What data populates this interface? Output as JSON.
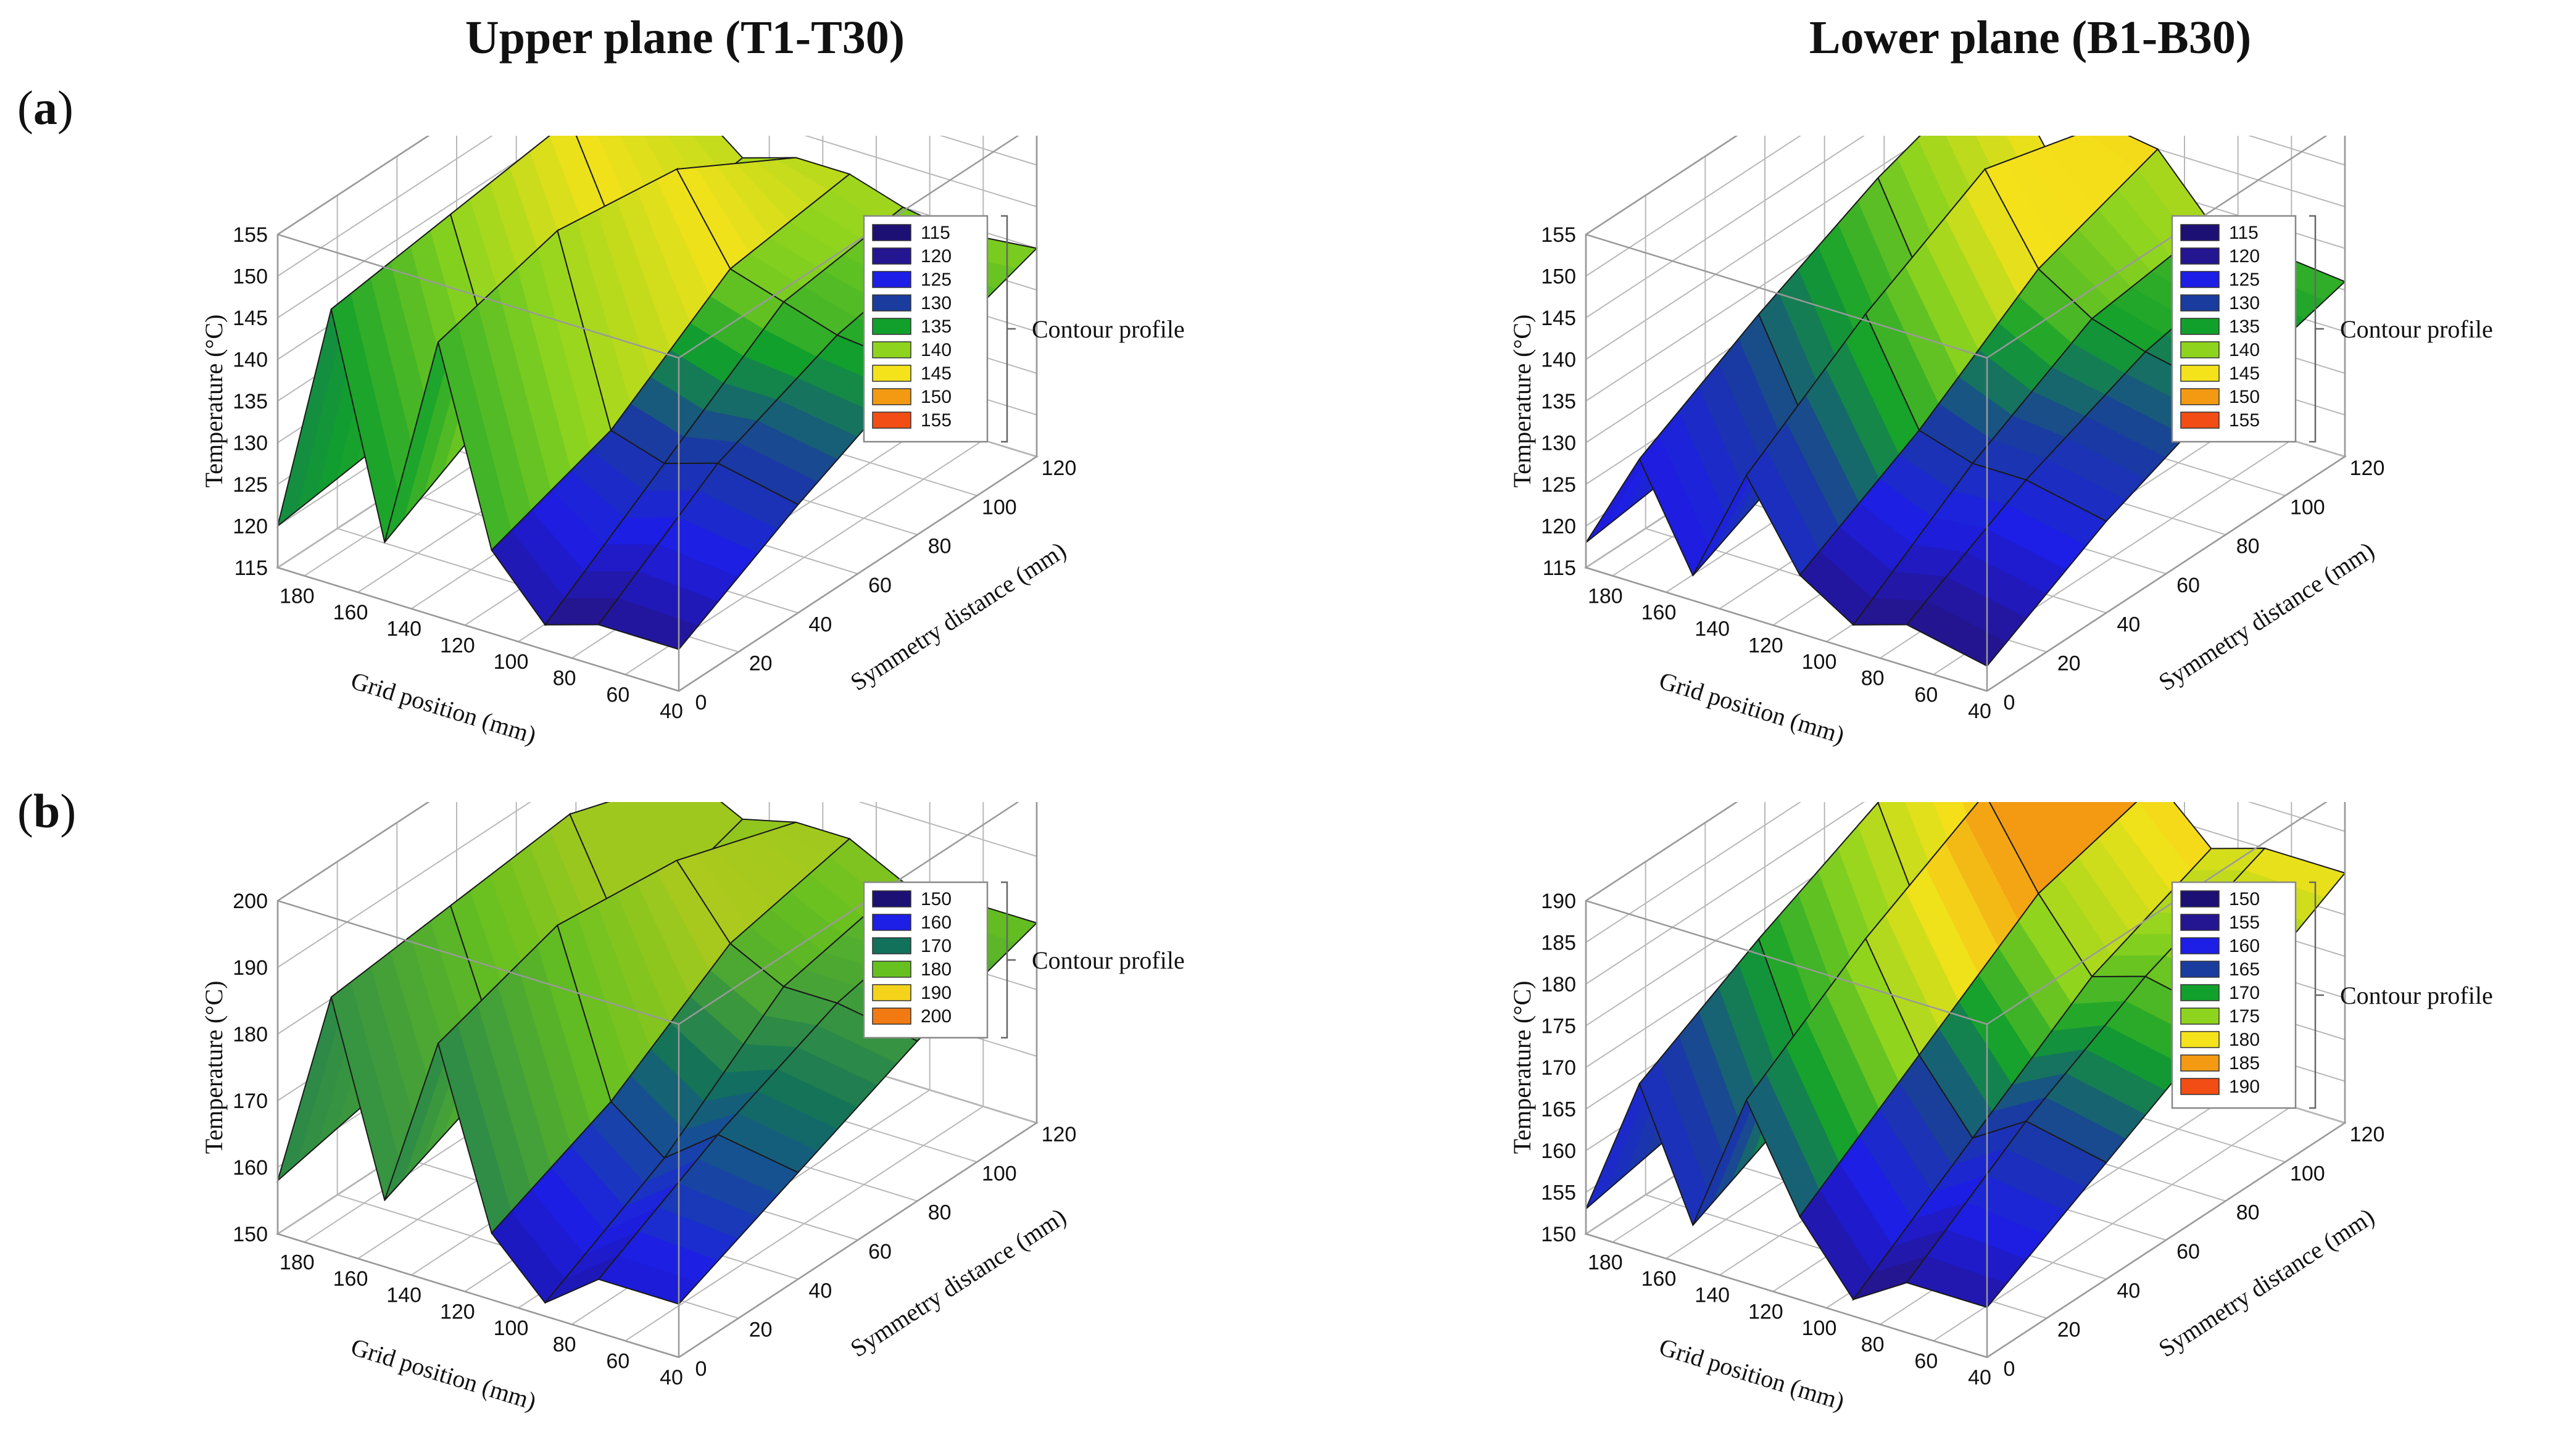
{
  "figure": {
    "column_headers": [
      "Upper plane (T1-T30)",
      "Lower plane (B1-B30)"
    ],
    "row_labels": [
      "(a)",
      "(b)"
    ],
    "row_label_parts": [
      {
        "open": "(",
        "letter": "a",
        "close": ")"
      },
      {
        "open": "(",
        "letter": "b",
        "close": ")"
      }
    ]
  },
  "chart_data": [
    {
      "id": "a-upper",
      "type": "surface3d",
      "title": "Upper plane (T1-T30)",
      "xlabel": "Grid position (mm)",
      "ylabel": "Symmetry distance (mm)",
      "zlabel": "Temperature (°C)",
      "x_ticks": [
        "180",
        "160",
        "140",
        "120",
        "100",
        "80",
        "60",
        "40"
      ],
      "y_ticks": [
        "0",
        "20",
        "40",
        "60",
        "80",
        "100",
        "120"
      ],
      "z_ticks": [
        "115",
        "120",
        "125",
        "130",
        "135",
        "140",
        "145",
        "150",
        "155"
      ],
      "zlim": [
        115,
        155
      ],
      "legend_title": "Contour profile",
      "legend": [
        "115",
        "120",
        "125",
        "130",
        "135",
        "140",
        "145",
        "150",
        "155"
      ],
      "legend_colors": [
        "#1c1075",
        "#241591",
        "#1d1ee6",
        "#1a3c9e",
        "#12a02c",
        "#8ed41e",
        "#f4e21a",
        "#f39a12",
        "#f24d14"
      ],
      "surface": {
        "grid_x": [
          190,
          170,
          150,
          130,
          110,
          90,
          70,
          40
        ],
        "grid_y": [
          0,
          40,
          80,
          120
        ],
        "z": [
          [
            120,
            122,
            125,
            128
          ],
          [
            148,
            150,
            152,
            145
          ],
          [
            122,
            130,
            138,
            140
          ],
          [
            148,
            152,
            150,
            142
          ],
          [
            125,
            130,
            140,
            142
          ],
          [
            118,
            128,
            138,
            140
          ],
          [
            120,
            130,
            136,
            139
          ],
          [
            120,
            128,
            135,
            140
          ]
        ]
      }
    },
    {
      "id": "a-lower",
      "type": "surface3d",
      "title": "Lower plane (B1-B30)",
      "xlabel": "Grid position (mm)",
      "ylabel": "Symmetry distance (mm)",
      "zlabel": "Temperature (°C)",
      "x_ticks": [
        "180",
        "160",
        "140",
        "120",
        "100",
        "80",
        "60",
        "40"
      ],
      "y_ticks": [
        "0",
        "20",
        "40",
        "60",
        "80",
        "100",
        "120"
      ],
      "z_ticks": [
        "115",
        "120",
        "125",
        "130",
        "135",
        "140",
        "145",
        "150",
        "155"
      ],
      "zlim": [
        115,
        155
      ],
      "legend_title": "Contour profile",
      "legend": [
        "115",
        "120",
        "125",
        "130",
        "135",
        "140",
        "145",
        "150",
        "155"
      ],
      "legend_colors": [
        "#1c1075",
        "#241591",
        "#1d1ee6",
        "#1a3c9e",
        "#12a02c",
        "#8ed41e",
        "#f4e21a",
        "#f39a12",
        "#f24d14"
      ],
      "surface": {
        "grid_x": [
          190,
          170,
          150,
          130,
          110,
          90,
          70,
          40
        ],
        "grid_y": [
          0,
          40,
          80,
          120
        ],
        "z": [
          [
            118,
            120,
            122,
            124
          ],
          [
            130,
            138,
            145,
            150
          ],
          [
            118,
            125,
            132,
            140
          ],
          [
            132,
            142,
            150,
            146
          ],
          [
            122,
            130,
            140,
            145
          ],
          [
            118,
            128,
            136,
            138
          ],
          [
            120,
            128,
            134,
            137
          ],
          [
            118,
            126,
            132,
            136
          ]
        ]
      }
    },
    {
      "id": "b-upper",
      "type": "surface3d",
      "title": "Upper plane (T1-T30)",
      "xlabel": "Grid position (mm)",
      "ylabel": "Symmetry distance (mm)",
      "zlabel": "Temperature (°C)",
      "x_ticks": [
        "180",
        "160",
        "140",
        "120",
        "100",
        "80",
        "60",
        "40"
      ],
      "y_ticks": [
        "0",
        "20",
        "40",
        "60",
        "80",
        "100",
        "120"
      ],
      "z_ticks": [
        "150",
        "160",
        "170",
        "180",
        "190",
        "200"
      ],
      "zlim": [
        150,
        200
      ],
      "legend_title": "Contour profile",
      "legend": [
        "150",
        "160",
        "170",
        "180",
        "190",
        "200"
      ],
      "legend_colors": [
        "#1c1075",
        "#1d1ee6",
        "#12715a",
        "#66c020",
        "#f4d41a",
        "#f27a12"
      ],
      "surface": {
        "grid_x": [
          190,
          170,
          150,
          130,
          110,
          90,
          70,
          40
        ],
        "grid_y": [
          0,
          40,
          80,
          120
        ],
        "z": [
          [
            158,
            162,
            166,
            170
          ],
          [
            188,
            190,
            192,
            186
          ],
          [
            160,
            168,
            176,
            182
          ],
          [
            186,
            192,
            190,
            184
          ],
          [
            160,
            168,
            180,
            184
          ],
          [
            152,
            162,
            176,
            180
          ],
          [
            158,
            168,
            176,
            180
          ],
          [
            158,
            166,
            174,
            180
          ]
        ]
      }
    },
    {
      "id": "b-lower",
      "type": "surface3d",
      "title": "Lower plane (B1-B30)",
      "xlabel": "Grid position (mm)",
      "ylabel": "Symmetry distance (mm)",
      "zlabel": "Temperature (°C)",
      "x_ticks": [
        "180",
        "160",
        "140",
        "120",
        "100",
        "80",
        "60",
        "40"
      ],
      "y_ticks": [
        "0",
        "20",
        "40",
        "60",
        "80",
        "100",
        "120"
      ],
      "z_ticks": [
        "150",
        "155",
        "160",
        "165",
        "170",
        "175",
        "180",
        "185",
        "190"
      ],
      "zlim": [
        150,
        190
      ],
      "legend_title": "Contour profile",
      "legend": [
        "150",
        "155",
        "160",
        "165",
        "170",
        "175",
        "180",
        "185",
        "190"
      ],
      "legend_colors": [
        "#1c1075",
        "#241591",
        "#1d1ee6",
        "#1a3c9e",
        "#12a02c",
        "#8ed41e",
        "#f4e21a",
        "#f39a12",
        "#f24d14"
      ],
      "surface": {
        "grid_x": [
          190,
          170,
          150,
          130,
          110,
          90,
          70,
          40
        ],
        "grid_y": [
          0,
          40,
          80,
          120
        ],
        "z": [
          [
            153,
            156,
            158,
            160
          ],
          [
            170,
            178,
            185,
            190
          ],
          [
            155,
            162,
            170,
            178
          ],
          [
            172,
            182,
            190,
            186
          ],
          [
            160,
            170,
            180,
            184
          ],
          [
            152,
            162,
            172,
            178
          ],
          [
            156,
            166,
            174,
            180
          ],
          [
            156,
            164,
            172,
            180
          ]
        ]
      }
    }
  ]
}
